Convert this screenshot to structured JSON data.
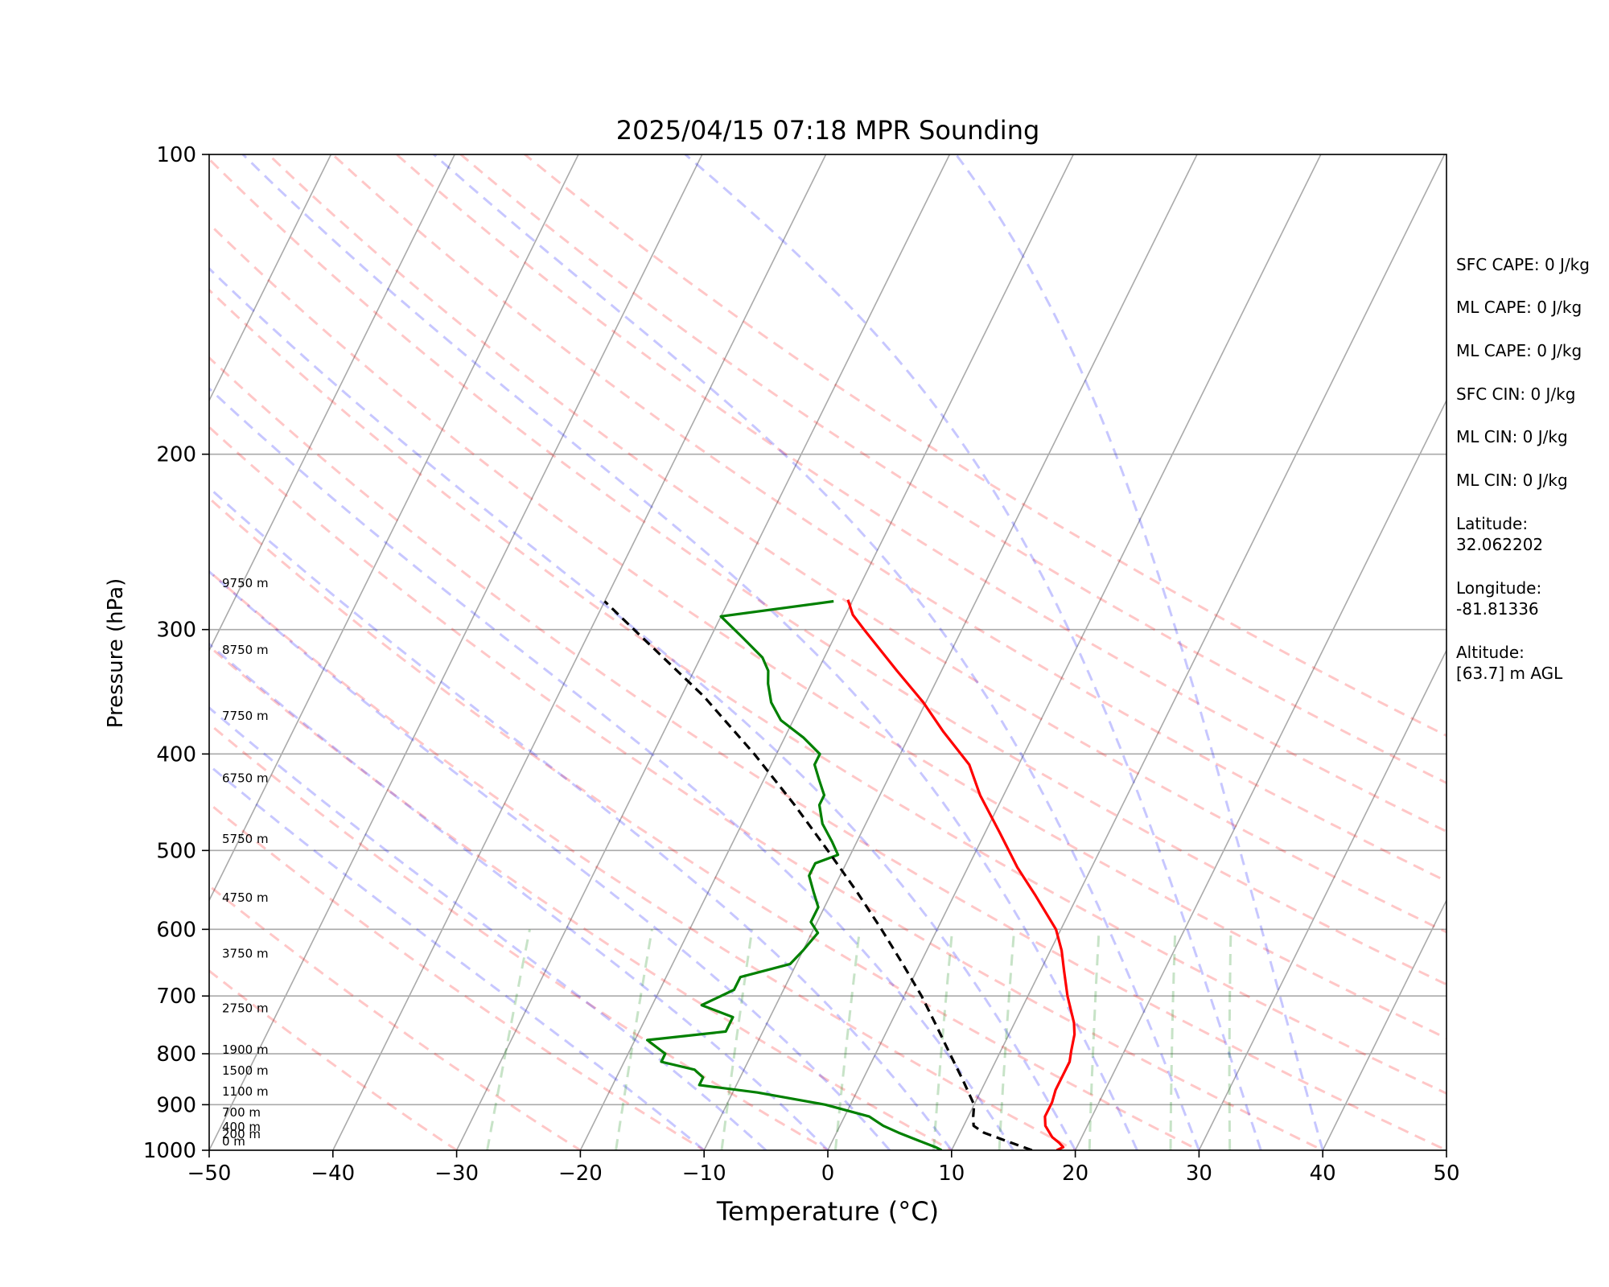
{
  "chart_data": {
    "type": "line",
    "title": "2025/04/15 07:18 MPR Sounding",
    "xlabel": "Temperature (°C)",
    "ylabel": "Pressure (hPa)",
    "xlim": [
      -50,
      50
    ],
    "ylim": [
      1000,
      100
    ],
    "y_scale": "log",
    "skew_t": true,
    "grid": true,
    "x_ticks": [
      "−50",
      "−40",
      "−30",
      "−20",
      "−10",
      "0",
      "10",
      "20",
      "30",
      "40",
      "50"
    ],
    "y_ticks": [
      "100",
      "200",
      "300",
      "400",
      "500",
      "600",
      "700",
      "800",
      "900",
      "1000"
    ],
    "height_labels": [
      {
        "p": 1000,
        "text": "0 m"
      },
      {
        "p": 983,
        "text": "200 m"
      },
      {
        "p": 967,
        "text": "400 m"
      },
      {
        "p": 935,
        "text": "700 m"
      },
      {
        "p": 891,
        "text": "1100 m"
      },
      {
        "p": 849,
        "text": "1500 m"
      },
      {
        "p": 809,
        "text": "1900 m"
      },
      {
        "p": 735,
        "text": "2750 m"
      },
      {
        "p": 648,
        "text": "3750 m"
      },
      {
        "p": 569,
        "text": "4750 m"
      },
      {
        "p": 497,
        "text": "5750 m"
      },
      {
        "p": 432,
        "text": "6750 m"
      },
      {
        "p": 374,
        "text": "7750 m"
      },
      {
        "p": 321,
        "text": "8750 m"
      },
      {
        "p": 275,
        "text": "9750 m"
      }
    ],
    "series": [
      {
        "color": "#ff0000",
        "dash": "solid",
        "points": [
          [
            1000,
            18.5
          ],
          [
            993,
            18.9
          ],
          [
            983,
            18.4
          ],
          [
            970,
            17.6
          ],
          [
            945,
            16.6
          ],
          [
            925,
            16.2
          ],
          [
            895,
            16.2
          ],
          [
            870,
            16.0
          ],
          [
            850,
            16.0
          ],
          [
            815,
            16.0
          ],
          [
            795,
            15.7
          ],
          [
            765,
            15.3
          ],
          [
            745,
            14.8
          ],
          [
            700,
            13.2
          ],
          [
            660,
            11.9
          ],
          [
            630,
            10.9
          ],
          [
            600,
            9.6
          ],
          [
            555,
            6.6
          ],
          [
            520,
            4.0
          ],
          [
            480,
            1.2
          ],
          [
            440,
            -1.9
          ],
          [
            410,
            -4.0
          ],
          [
            380,
            -7.4
          ],
          [
            355,
            -10.2
          ],
          [
            330,
            -13.6
          ],
          [
            300,
            -17.9
          ],
          [
            290,
            -19.4
          ],
          [
            280,
            -20.4
          ]
        ]
      },
      {
        "color": "#008000",
        "dash": "solid",
        "points": [
          [
            1000,
            9.2
          ],
          [
            993,
            8.6
          ],
          [
            983,
            7.5
          ],
          [
            960,
            5.0
          ],
          [
            945,
            3.5
          ],
          [
            925,
            2.0
          ],
          [
            900,
            -2.0
          ],
          [
            875,
            -8.0
          ],
          [
            860,
            -13.0
          ],
          [
            845,
            -13.0
          ],
          [
            830,
            -14.0
          ],
          [
            815,
            -17.0
          ],
          [
            800,
            -17.0
          ],
          [
            775,
            -19.0
          ],
          [
            760,
            -13.0
          ],
          [
            735,
            -13.0
          ],
          [
            715,
            -16.0
          ],
          [
            690,
            -14.0
          ],
          [
            670,
            -14.0
          ],
          [
            650,
            -10.5
          ],
          [
            630,
            -10.0
          ],
          [
            605,
            -9.5
          ],
          [
            590,
            -10.5
          ],
          [
            570,
            -10.5
          ],
          [
            550,
            -11.5
          ],
          [
            530,
            -12.5
          ],
          [
            515,
            -12.5
          ],
          [
            505,
            -11.0
          ],
          [
            490,
            -12.0
          ],
          [
            470,
            -13.5
          ],
          [
            450,
            -14.5
          ],
          [
            440,
            -14.5
          ],
          [
            425,
            -15.5
          ],
          [
            410,
            -16.5
          ],
          [
            400,
            -16.5
          ],
          [
            385,
            -18.5
          ],
          [
            370,
            -21.0
          ],
          [
            355,
            -22.5
          ],
          [
            340,
            -23.5
          ],
          [
            330,
            -24.0
          ],
          [
            320,
            -25.0
          ],
          [
            305,
            -27.5
          ],
          [
            291,
            -30.0
          ],
          [
            281,
            -21.5
          ]
        ]
      },
      {
        "color": "#000000",
        "dash": "dashed",
        "points": [
          [
            1000,
            16.5
          ],
          [
            980,
            14.2
          ],
          [
            960,
            11.9
          ],
          [
            945,
            10.8
          ],
          [
            925,
            10.4
          ],
          [
            900,
            10.0
          ],
          [
            850,
            8.1
          ],
          [
            800,
            6.0
          ],
          [
            750,
            3.8
          ],
          [
            700,
            1.4
          ],
          [
            650,
            -1.4
          ],
          [
            600,
            -4.5
          ],
          [
            550,
            -8.0
          ],
          [
            500,
            -12.0
          ],
          [
            450,
            -16.5
          ],
          [
            400,
            -21.8
          ],
          [
            350,
            -28.2
          ],
          [
            300,
            -36.5
          ],
          [
            281,
            -40.0
          ]
        ]
      }
    ],
    "reference_lines": {
      "isotherms_c": [
        -160,
        -150,
        -140,
        -130,
        -120,
        -110,
        -100,
        -90,
        -80,
        -70,
        -60,
        -50,
        -40,
        -30,
        -20,
        -10,
        0,
        10,
        20,
        30,
        40,
        50
      ],
      "dry_adiabats_c": [
        -30,
        -20,
        -10,
        0,
        10,
        20,
        30,
        40,
        50,
        60,
        70,
        80,
        90,
        100,
        110,
        120,
        130
      ],
      "moist_adiabats_c": [
        -10,
        -5,
        0,
        5,
        10,
        15,
        20,
        25,
        30,
        35,
        40
      ],
      "mixing_ratios_gkg": [
        0.4,
        1,
        2,
        4,
        7,
        10,
        16,
        24,
        32
      ],
      "dry_adiabat_color": "#ff0000",
      "moist_adiabat_color": "#0000ff",
      "mixing_ratio_color": "#008000",
      "grid_color": "#aaaaaa"
    }
  },
  "side_panel": [
    {
      "text": "SFC CAPE: 0 J/kg"
    },
    {
      "text": "ML CAPE: 0 J/kg"
    },
    {
      "text": "ML CAPE: 0 J/kg"
    },
    {
      "text": "SFC CIN: 0 J/kg"
    },
    {
      "text": "ML CIN: 0 J/kg"
    },
    {
      "text": "ML CIN: 0 J/kg"
    },
    {
      "label": "Latitude:",
      "value": "32.062202"
    },
    {
      "label": "Longitude:",
      "value": "-81.81336"
    },
    {
      "label": "Altitude:",
      "value": "[63.7] m AGL"
    }
  ]
}
